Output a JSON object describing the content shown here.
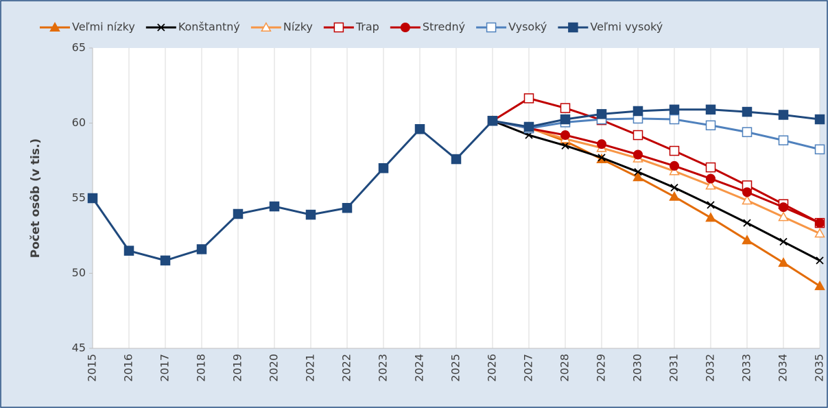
{
  "chart_data": {
    "type": "line",
    "y_label": "Počet osôb (v tis.)",
    "categories": [
      "2015",
      "2016",
      "2017",
      "2018",
      "2019",
      "2020",
      "2021",
      "2022",
      "2023",
      "2024",
      "2025",
      "2026",
      "2027",
      "2028",
      "2029",
      "2030",
      "2031",
      "2032",
      "2033",
      "2034",
      "2035"
    ],
    "ylim": [
      45,
      65
    ],
    "yticks": [
      45,
      50,
      55,
      60,
      65
    ],
    "grid": "x",
    "legend": "top",
    "series": [
      {
        "name": "Veľmi nízky",
        "color": "#e36c09",
        "marker": "triangle-filled",
        "values": [
          null,
          null,
          null,
          null,
          null,
          null,
          null,
          null,
          null,
          null,
          null,
          60.15,
          59.7,
          58.8,
          57.6,
          56.4,
          55.1,
          53.7,
          52.2,
          50.7,
          49.15
        ]
      },
      {
        "name": "Konštantný",
        "color": "#000000",
        "marker": "x",
        "values": [
          null,
          null,
          null,
          null,
          null,
          null,
          null,
          null,
          null,
          null,
          null,
          60.15,
          59.2,
          58.5,
          57.7,
          56.75,
          55.7,
          54.55,
          53.35,
          52.1,
          50.85
        ]
      },
      {
        "name": "Nízky",
        "color": "#f79646",
        "marker": "triangle-open",
        "values": [
          null,
          null,
          null,
          null,
          null,
          null,
          null,
          null,
          null,
          null,
          null,
          60.15,
          59.65,
          58.95,
          58.35,
          57.65,
          56.8,
          55.85,
          54.85,
          53.75,
          52.65
        ]
      },
      {
        "name": "Trap",
        "color": "#c00000",
        "marker": "square-open",
        "values": [
          null,
          null,
          null,
          null,
          null,
          null,
          null,
          null,
          null,
          null,
          null,
          60.15,
          61.65,
          61.0,
          60.2,
          59.2,
          58.15,
          57.05,
          55.85,
          54.6,
          53.35
        ]
      },
      {
        "name": "Stredný",
        "color": "#c00000",
        "marker": "circle-filled",
        "values": [
          null,
          null,
          null,
          null,
          null,
          null,
          null,
          null,
          null,
          null,
          null,
          60.15,
          59.65,
          59.2,
          58.6,
          57.9,
          57.15,
          56.3,
          55.4,
          54.4,
          53.35
        ]
      },
      {
        "name": "Vysoký",
        "color": "#4f81bd",
        "marker": "square-open",
        "values": [
          null,
          null,
          null,
          null,
          null,
          null,
          null,
          null,
          null,
          null,
          null,
          60.15,
          59.65,
          60.05,
          60.25,
          60.3,
          60.25,
          59.85,
          59.4,
          58.85,
          58.25
        ]
      },
      {
        "name": "Veľmi vysoký",
        "color": "#1f497d",
        "marker": "square-filled",
        "values": [
          55.0,
          51.5,
          50.85,
          51.6,
          53.95,
          54.45,
          53.9,
          54.35,
          57.0,
          59.6,
          57.6,
          60.15,
          59.75,
          60.25,
          60.6,
          60.8,
          60.9,
          60.9,
          60.75,
          60.55,
          60.25
        ]
      }
    ]
  }
}
